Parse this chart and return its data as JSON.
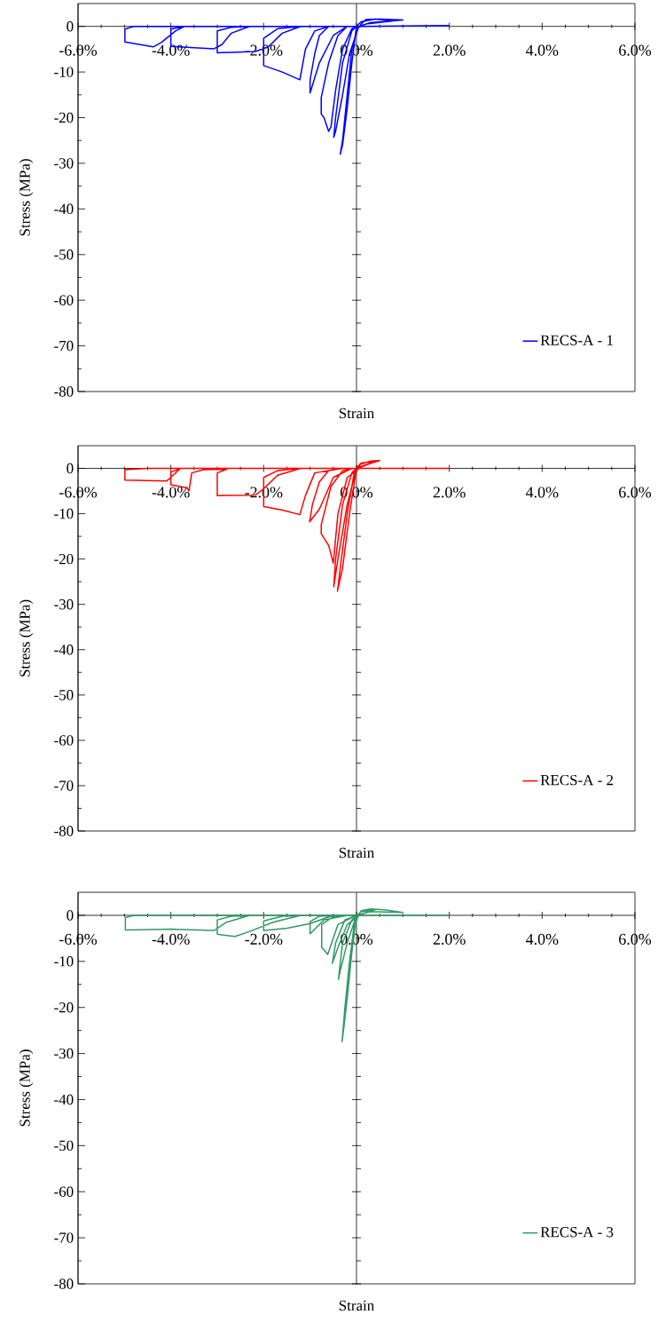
{
  "chart_data": [
    {
      "type": "line",
      "xlabel": "Strain",
      "ylabel": "Stress (MPa)",
      "legend": "bottom right",
      "xlim": [
        -6,
        6
      ],
      "ylim": [
        -80,
        5
      ],
      "xticks": [
        {
          "value": -6,
          "label": "-6.0%"
        },
        {
          "value": -4,
          "label": "-4.0%"
        },
        {
          "value": -2,
          "label": "-2.0%"
        },
        {
          "value": 0,
          "label": "0.0%"
        },
        {
          "value": 2,
          "label": "2.0%"
        },
        {
          "value": 4,
          "label": "4.0%"
        },
        {
          "value": 6,
          "label": "6.0%"
        }
      ],
      "yticks": [
        -80,
        -70,
        -60,
        -50,
        -40,
        -30,
        -20,
        -10,
        0
      ],
      "x": [
        0,
        -0.1,
        -0.2,
        -0.3,
        -0.35,
        -0.3,
        -0.2,
        -0.1,
        0,
        0.1,
        0.2,
        0.5,
        1.0,
        0.3,
        0.05,
        -0.15,
        -0.3,
        -0.45,
        -0.49,
        -0.45,
        -0.3,
        -0.1,
        0.1,
        0.4,
        0.8,
        0.2,
        -0.1,
        -0.3,
        -0.45,
        -0.55,
        -0.6,
        -0.7,
        -0.76,
        -0.76,
        -0.6,
        -0.4,
        -0.2,
        -0.5,
        -0.8,
        -1.0,
        -1.0,
        -0.9,
        -0.8,
        -0.6,
        -0.9,
        -1.1,
        -1.22,
        -1.6,
        -2.0,
        -2.0,
        -1.7,
        -1.2,
        -1.6,
        -1.9,
        -2.18,
        -3.0,
        -3.0,
        -2.7,
        -2.3,
        -2.7,
        -2.9,
        -3.07,
        -4.0,
        -4.0,
        -3.7,
        -3.9,
        -4.2,
        -4.38,
        -4.99,
        -4.99,
        -4.8,
        0,
        2.0
      ],
      "series": [
        {
          "name": "RECS-A - 1",
          "color": "#0000ff",
          "values": [
            0,
            -8,
            -18,
            -26,
            -28,
            -25,
            -15,
            -5,
            -1,
            0.5,
            1.5,
            1.6,
            1.4,
            0.8,
            0,
            -6,
            -15,
            -23,
            -24.3,
            -20,
            -8,
            -1,
            1,
            1.6,
            1.2,
            0.5,
            -0.5,
            -5,
            -14,
            -22,
            -23,
            -20,
            -19.2,
            -15.6,
            -8,
            -2,
            0,
            -2,
            -8,
            -14.6,
            -11.7,
            -6,
            -2,
            0,
            -1,
            -5,
            -11.7,
            -10,
            -8.6,
            -2.6,
            -0.5,
            0,
            -1.5,
            -4.5,
            -5.5,
            -5.8,
            -1,
            -0.2,
            0,
            -1.5,
            -4,
            -4.9,
            -4.4,
            -0.6,
            0,
            -1,
            -3.5,
            -4.5,
            -3.4,
            -0.6,
            0,
            0,
            0.2
          ]
        }
      ]
    },
    {
      "type": "line",
      "xlabel": "Strain",
      "ylabel": "Stress (MPa)",
      "legend": "bottom right",
      "xlim": [
        -6,
        6
      ],
      "ylim": [
        -80,
        5
      ],
      "xticks": [
        {
          "value": -6,
          "label": "-6.0%"
        },
        {
          "value": -4,
          "label": "-4.0%"
        },
        {
          "value": -2,
          "label": "-2.0%"
        },
        {
          "value": 0,
          "label": "0.0%"
        },
        {
          "value": 2,
          "label": "2.0%"
        },
        {
          "value": 4,
          "label": "4.0%"
        },
        {
          "value": 6,
          "label": "6.0%"
        }
      ],
      "yticks": [
        -80,
        -70,
        -60,
        -50,
        -40,
        -30,
        -20,
        -10,
        0
      ],
      "x": [
        0,
        -0.15,
        -0.3,
        -0.41,
        -0.35,
        -0.2,
        -0.05,
        0.1,
        0.3,
        0.5,
        0.2,
        0,
        -0.2,
        -0.4,
        -0.49,
        -0.45,
        -0.3,
        -0.1,
        0.1,
        0.4,
        0.1,
        -0.2,
        -0.4,
        -0.5,
        -0.6,
        -0.76,
        -0.76,
        -0.55,
        -0.3,
        -0.1,
        -0.5,
        -0.8,
        -1.01,
        -0.95,
        -0.8,
        -0.6,
        -0.3,
        -0.9,
        -1.1,
        -1.22,
        -1.6,
        -2.0,
        -2.0,
        -1.7,
        -1.2,
        -1.7,
        -2.0,
        -2.18,
        -3.0,
        -3.0,
        -2.8,
        -3.3,
        -3.55,
        -3.61,
        -3.65,
        -4.0,
        -4.0,
        -3.8,
        -4.09,
        -4.99,
        -4.99,
        -4.5,
        0,
        2.0
      ],
      "series": [
        {
          "name": "RECS-A - 2",
          "color": "#ff0000",
          "values": [
            0,
            -10,
            -22,
            -27.1,
            -22,
            -10,
            -1,
            1,
            1.6,
            1.7,
            0.8,
            0,
            -8,
            -20,
            -26.1,
            -20,
            -8,
            -1,
            1.2,
            1.5,
            0.3,
            -2,
            -10,
            -20.9,
            -17,
            -14.4,
            -12.4,
            -4,
            -0.5,
            0,
            -2,
            -9,
            -11.8,
            -8,
            -3,
            -0.5,
            0,
            -1,
            -6,
            -10.2,
            -9.2,
            -8.4,
            -2,
            -0.5,
            0,
            -1.5,
            -4.5,
            -5.9,
            -6.0,
            -1,
            -0.2,
            -0.3,
            -1,
            -5.0,
            -4.3,
            -3.6,
            -0.8,
            -0.1,
            -2.8,
            -2.6,
            -0.3,
            0,
            0,
            0
          ]
        }
      ]
    },
    {
      "type": "line",
      "xlabel": "Strain",
      "ylabel": "Stress (MPa)",
      "legend": "bottom right",
      "xlim": [
        -6,
        6
      ],
      "ylim": [
        -80,
        5
      ],
      "xticks": [
        {
          "value": -6,
          "label": "-6.0%"
        },
        {
          "value": -4,
          "label": "-4.0%"
        },
        {
          "value": -2,
          "label": "-2.0%"
        },
        {
          "value": 0,
          "label": "0.0%"
        },
        {
          "value": 2,
          "label": "2.0%"
        },
        {
          "value": 4,
          "label": "4.0%"
        },
        {
          "value": 6,
          "label": "6.0%"
        }
      ],
      "yticks": [
        -80,
        -70,
        -60,
        -50,
        -40,
        -30,
        -20,
        -10,
        0
      ],
      "x": [
        0,
        -0.1,
        -0.2,
        -0.28,
        -0.31,
        -0.25,
        -0.15,
        -0.05,
        0.1,
        0.3,
        0.6,
        1.0,
        0.3,
        0,
        -0.2,
        -0.35,
        -0.39,
        -0.3,
        -0.1,
        0.1,
        0.4,
        0.1,
        -0.2,
        -0.4,
        -0.52,
        -0.45,
        -0.25,
        0,
        -0.4,
        -0.62,
        -0.75,
        -0.75,
        -0.5,
        -0.2,
        -0.7,
        -0.9,
        -1.0,
        -1.0,
        -0.8,
        -0.5,
        -1.0,
        -1.5,
        -2.0,
        -2.0,
        -1.6,
        -1.2,
        -1.8,
        -2.3,
        -2.62,
        -3.0,
        -3.0,
        -2.7,
        -2.3,
        -2.8,
        -3.07,
        -4.0,
        -4.98,
        -4.98,
        -4.8,
        -3.7,
        0,
        2.0
      ],
      "series": [
        {
          "name": "RECS-A - 3",
          "color": "#339966",
          "values": [
            0,
            -8,
            -18,
            -25,
            -27.4,
            -20,
            -10,
            -2,
            1,
            1.4,
            1.2,
            0.6,
            0.8,
            0,
            -6,
            -12,
            -13.9,
            -6,
            -1,
            0.8,
            1.2,
            0.3,
            -2,
            -7,
            -10.4,
            -6,
            -1,
            0,
            -2,
            -8.5,
            -6.9,
            -2,
            -0.3,
            0,
            -1,
            -3,
            -4,
            -1.4,
            -0.2,
            0,
            -1.8,
            -2.8,
            -3.3,
            -1.2,
            -0.2,
            0,
            -1.5,
            -3.5,
            -4.6,
            -4.1,
            -1,
            -0.2,
            0,
            -1.5,
            -3.3,
            -3.0,
            -3.2,
            -0.5,
            0,
            0,
            0,
            0
          ]
        }
      ]
    }
  ]
}
